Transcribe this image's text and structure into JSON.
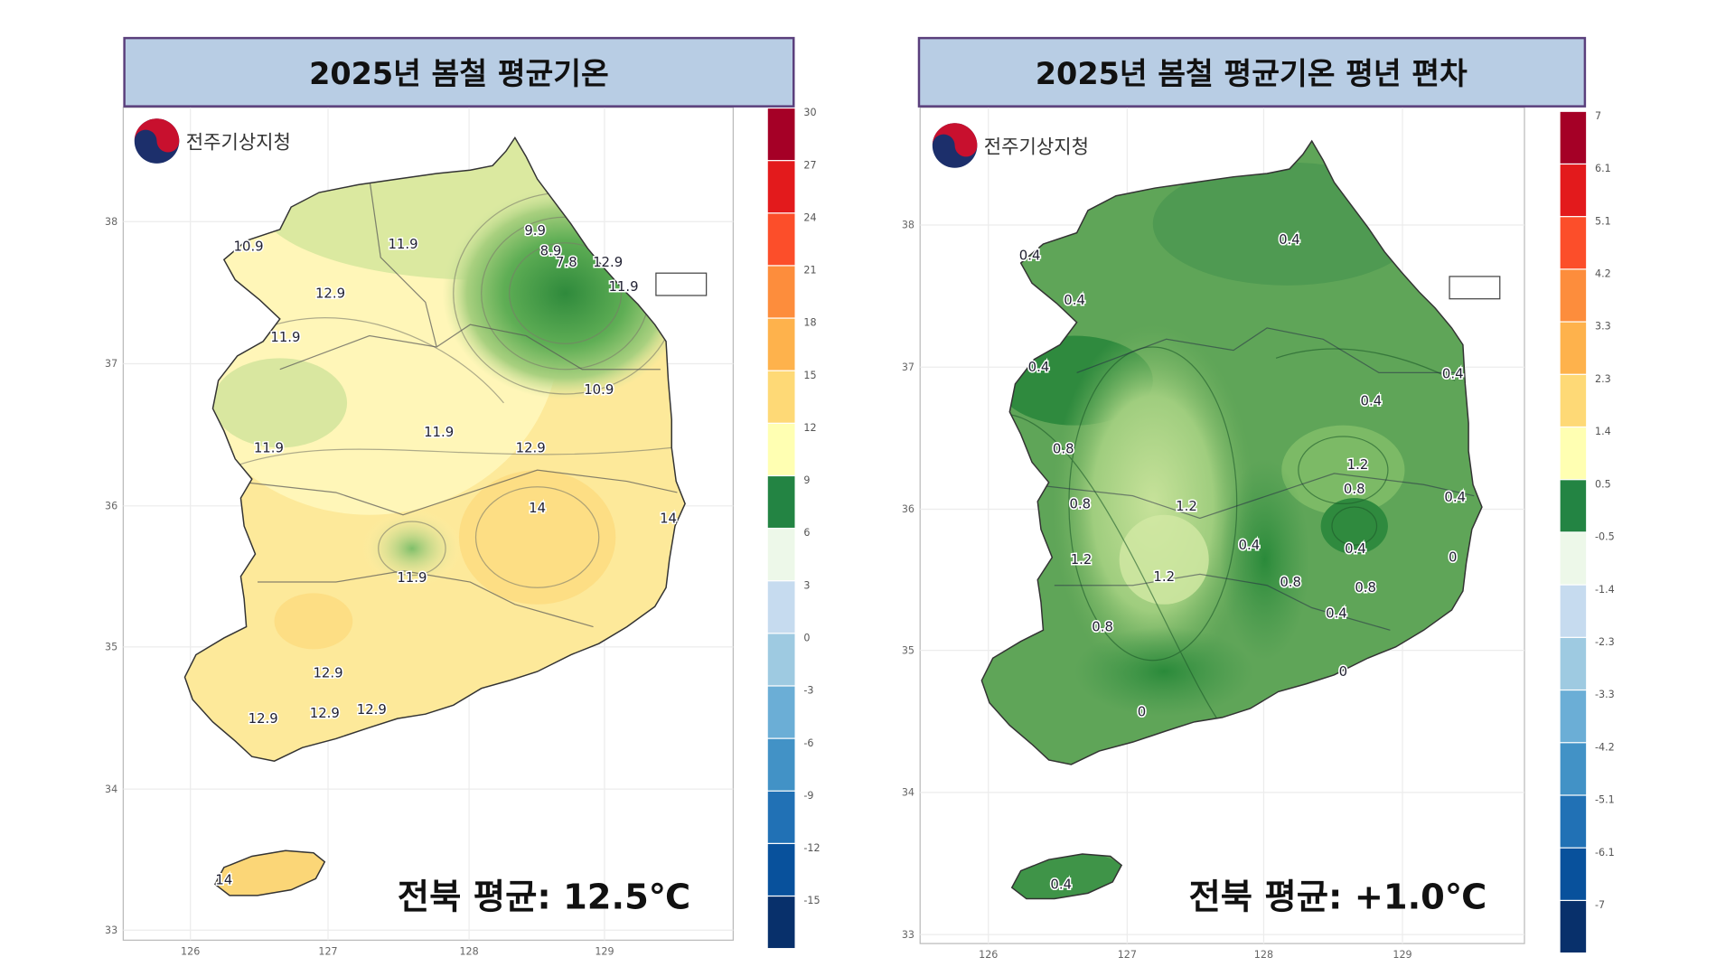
{
  "logo_text": "전주기상지청",
  "panels": [
    {
      "title": "2025년 봄철 평균기온",
      "average_text": "전북 평균: 12.5℃",
      "colorbar": {
        "colors": [
          "#a50026",
          "#e31a1c",
          "#fc4e2a",
          "#fd8d3c",
          "#feb24c",
          "#fed976",
          "#ffffb2",
          "#238443",
          "#edf8e9",
          "#c6dbef",
          "#9ecae1",
          "#6baed6",
          "#4292c6",
          "#2171b5",
          "#08519c",
          "#08306b"
        ],
        "labels": [
          "30",
          "27",
          "24",
          "21",
          "18",
          "15",
          "12",
          "9",
          "6",
          "3",
          "0",
          "-3",
          "-6",
          "-9",
          "-12",
          "-15"
        ]
      },
      "lat_ticks": [
        "38",
        "37",
        "36",
        "35",
        "34",
        "33"
      ],
      "lon_ticks": [
        "126",
        "127",
        "128",
        "129"
      ],
      "contour_labels": [
        "10.9",
        "11.9",
        "9.9",
        "8.9",
        "7.8",
        "12.9",
        "11.9",
        "12.9",
        "11.9",
        "10.9",
        "11.9",
        "11.9",
        "12.9",
        "14",
        "14",
        "11.9",
        "12.9",
        "12.9",
        "12.9",
        "12.9",
        "14"
      ]
    },
    {
      "title": "2025년 봄철 평균기온 평년 편차",
      "average_text": "전북 평균: +1.0℃",
      "colorbar": {
        "colors": [
          "#a50026",
          "#e31a1c",
          "#fc4e2a",
          "#fd8d3c",
          "#feb24c",
          "#fed976",
          "#ffffb2",
          "#238443",
          "#edf8e9",
          "#c6dbef",
          "#9ecae1",
          "#6baed6",
          "#4292c6",
          "#2171b5",
          "#08519c",
          "#08306b"
        ],
        "labels": [
          "7",
          "6.1",
          "5.1",
          "4.2",
          "3.3",
          "2.3",
          "1.4",
          "0.5",
          "-0.5",
          "-1.4",
          "-2.3",
          "-3.3",
          "-4.2",
          "-5.1",
          "-6.1",
          "-7"
        ]
      },
      "lat_ticks": [
        "38",
        "37",
        "36",
        "35",
        "34",
        "33"
      ],
      "lon_ticks": [
        "126",
        "127",
        "128",
        "129"
      ],
      "contour_labels": [
        "0.4",
        "0.4",
        "0.4",
        "0.4",
        "0.4",
        "0.4",
        "0.8",
        "1.2",
        "0.8",
        "0.8",
        "0.4",
        "1.2",
        "0.4",
        "0.4",
        "1.2",
        "1.2",
        "0.8",
        "0.8",
        "0.4",
        "0.8",
        "0.4",
        "0",
        "0",
        "0"
      ]
    }
  ]
}
